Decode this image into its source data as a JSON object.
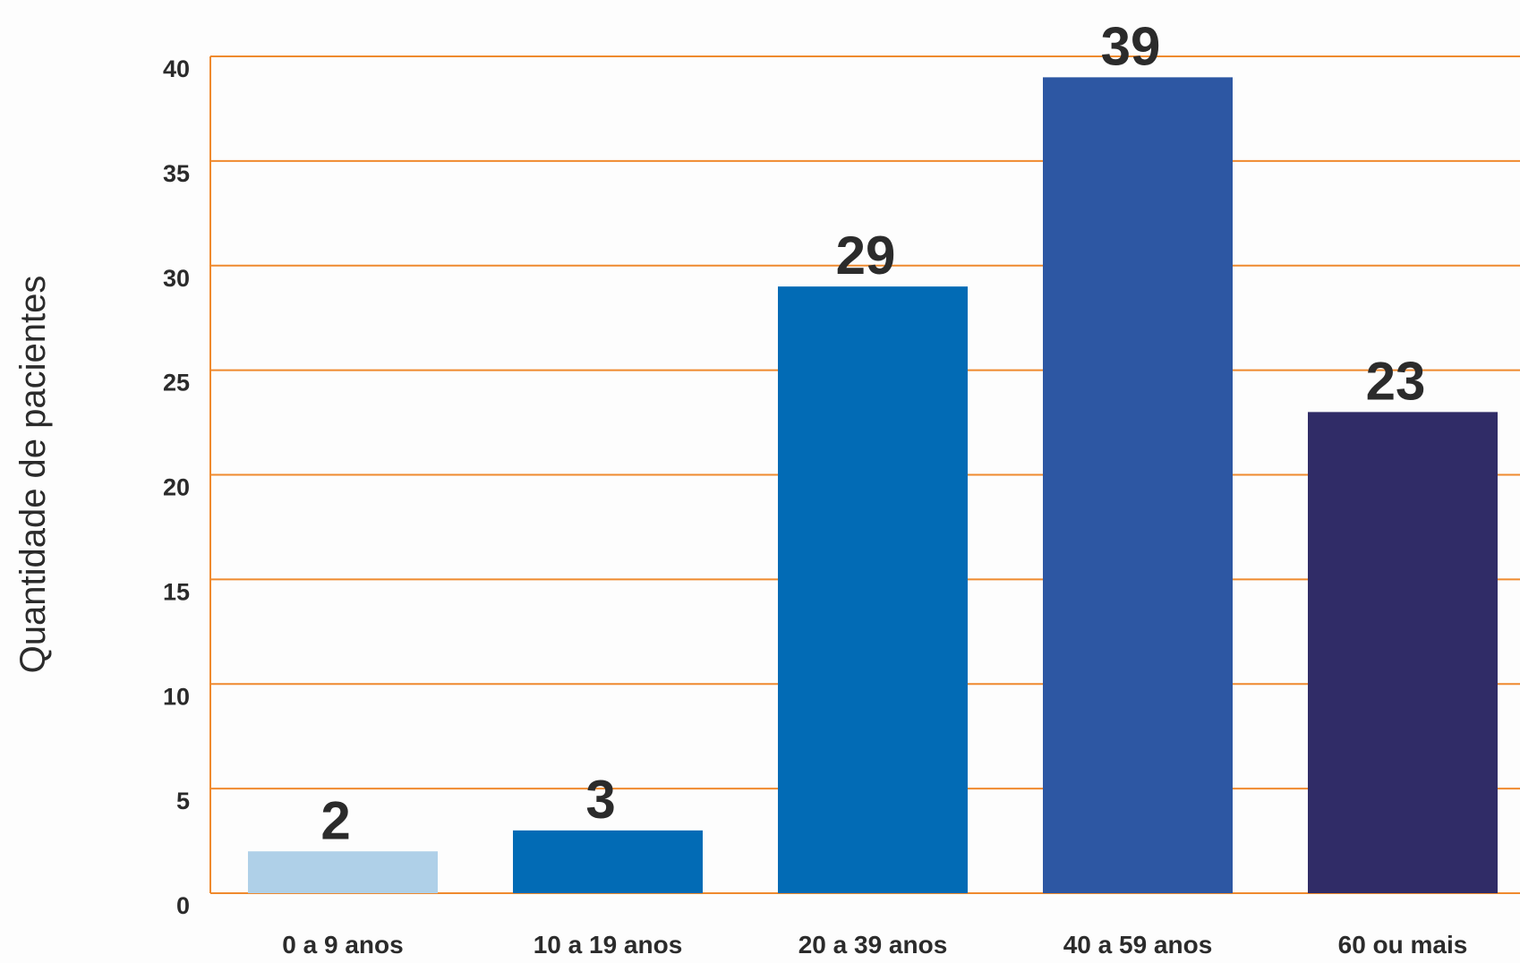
{
  "chart_data": {
    "type": "bar",
    "title": "",
    "xlabel": "",
    "ylabel": "Quantidade de pacientes",
    "categories": [
      "0 a 9 anos",
      "10 a 19 anos",
      "20 a 39 anos",
      "40 a 59 anos",
      "60 ou mais"
    ],
    "values": [
      2,
      3,
      29,
      39,
      23
    ],
    "data_labels": [
      "2",
      "3",
      "29",
      "39",
      "23"
    ],
    "bar_colors": [
      "#afd0e8",
      "#026bb5",
      "#026bb5",
      "#2d57a3",
      "#302c67"
    ],
    "ylim": [
      0,
      40
    ],
    "yticks": [
      0,
      5,
      10,
      15,
      20,
      25,
      30,
      35,
      40
    ],
    "ytick_labels": [
      "0",
      "5",
      "10",
      "15",
      "20",
      "25",
      "30",
      "35",
      "40"
    ],
    "grid": true,
    "grid_color": "#ef8a2e",
    "legend": "none"
  }
}
